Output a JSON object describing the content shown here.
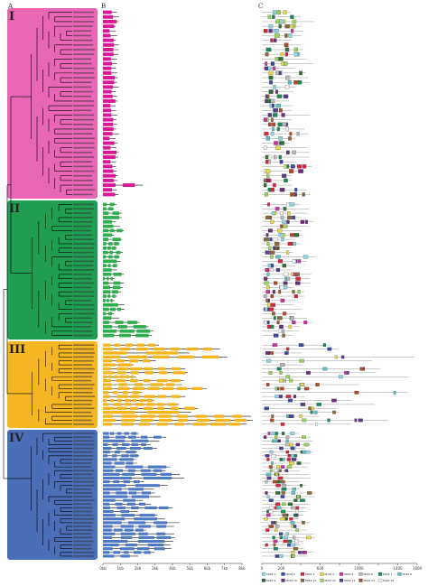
{
  "panels": {
    "a": "A",
    "b": "B",
    "c": "C"
  },
  "clades": [
    {
      "label": "I",
      "color": "#e866b3",
      "leaves": 40
    },
    {
      "label": "II",
      "color": "#1f9e52",
      "leaves": 31
    },
    {
      "label": "III",
      "color": "#f4b623",
      "leaves": 21
    },
    {
      "label": "IV",
      "color": "#4a6fb6",
      "leaves": 34
    }
  ],
  "colors": {
    "exon_I": "#d8179a",
    "exon_II": "#2fae4c",
    "exon_III": "#f6b51d",
    "exon_IV": "#4d78c2",
    "intron": "#111111",
    "protein_line": "#9a9a9a"
  },
  "gene_axis": {
    "ticks": [
      "0kb",
      "1kb",
      "2kb",
      "3kb",
      "4kb",
      "5kb",
      "6kb",
      "7kb",
      "8kb"
    ]
  },
  "motif_axis": {
    "ticks": [
      "0",
      "200",
      "400",
      "600",
      "800",
      "1000",
      "1200",
      "1400",
      "1600"
    ]
  },
  "motif_legend": [
    {
      "label": "Motif 1",
      "color": "#8fd3e0"
    },
    {
      "label": "Motif 2",
      "color": "#3b4a9c"
    },
    {
      "label": "Motif 3",
      "color": "#d7263d"
    },
    {
      "label": "Motif 4",
      "color": "#e4d84a"
    },
    {
      "label": "Motif 5",
      "color": "#c3379a"
    },
    {
      "label": "Motif 6",
      "color": "#b8b8b8"
    },
    {
      "label": "Motif 7",
      "color": "#1a8a5a"
    },
    {
      "label": "Motif 8",
      "color": "#5ec0c4"
    },
    {
      "label": "Motif 9",
      "color": "#2e6e3a"
    },
    {
      "label": "Motif 10",
      "color": "#6b2e7a"
    },
    {
      "label": "Motif 11",
      "color": "#8a6a3a"
    },
    {
      "label": "Motif 12",
      "color": "#9ad15a"
    },
    {
      "label": "Motif 13",
      "color": "#5a3a8a"
    },
    {
      "label": "Motif 14",
      "color": "#b04a2a"
    },
    {
      "label": "Motif 15",
      "color": "#f2f2f2"
    }
  ]
}
